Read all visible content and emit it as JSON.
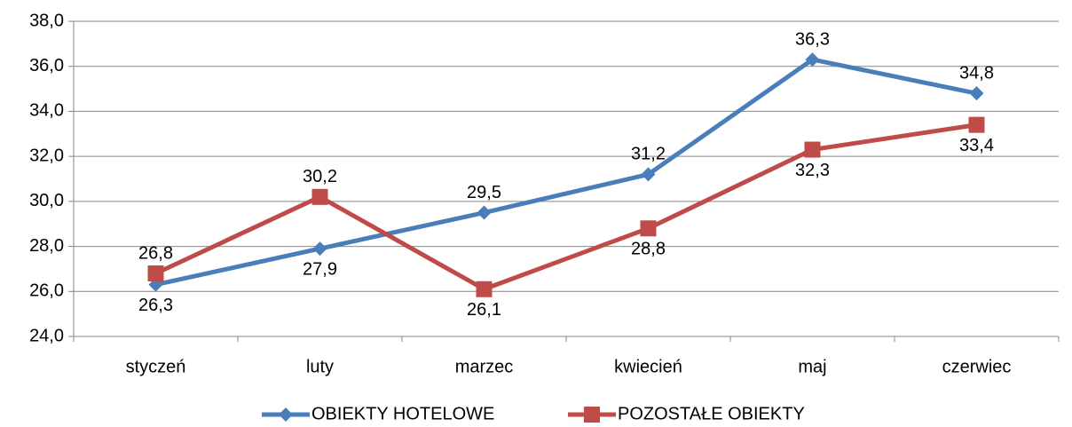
{
  "chart_data": {
    "type": "line",
    "categories": [
      "styczeń",
      "luty",
      "marzec",
      "kwiecień",
      "maj",
      "czerwiec"
    ],
    "series": [
      {
        "name": "OBIEKTY HOTELOWE",
        "color": "#4a7ebb",
        "marker": "diamond",
        "values": [
          26.3,
          27.9,
          29.5,
          31.2,
          36.3,
          34.8
        ],
        "value_labels": [
          "26,3",
          "27,9",
          "29,5",
          "31,2",
          "36,3",
          "34,8"
        ]
      },
      {
        "name": "POZOSTAŁE OBIEKTY",
        "color": "#be4b48",
        "marker": "square",
        "values": [
          26.8,
          30.2,
          26.1,
          28.8,
          32.3,
          33.4
        ],
        "value_labels": [
          "26,8",
          "30,2",
          "26,1",
          "28,8",
          "32,3",
          "33,4"
        ]
      }
    ],
    "ylim": [
      24,
      38
    ],
    "yticks": [
      {
        "value": 24,
        "label": "24,0"
      },
      {
        "value": 26,
        "label": "26,0"
      },
      {
        "value": 28,
        "label": "28,0"
      },
      {
        "value": 30,
        "label": "30,0"
      },
      {
        "value": 32,
        "label": "32,0"
      },
      {
        "value": 34,
        "label": "34,0"
      },
      {
        "value": 36,
        "label": "36,0"
      },
      {
        "value": 38,
        "label": "38,0"
      }
    ],
    "grid": true,
    "legend": "bottom"
  }
}
